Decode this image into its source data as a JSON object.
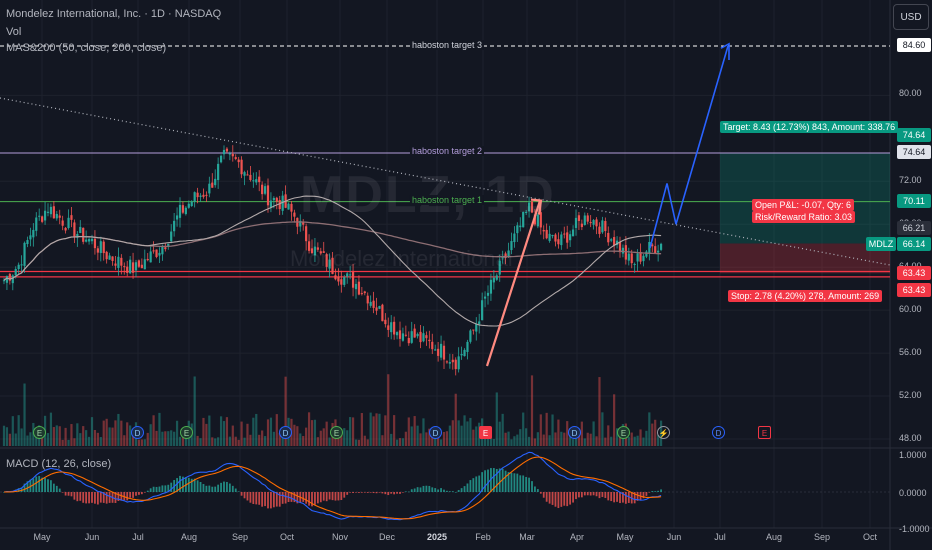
{
  "header": {
    "title": "Mondelez International, Inc. · 1D · NASDAQ",
    "volume_label": "Vol",
    "ma_label": "MAS&200 (50, close, 200, close)",
    "macd_label": "MACD (12, 26, close)",
    "currency_button": "USD"
  },
  "watermark": {
    "symbol": "MDLZ, 1D",
    "name": "Mondelez International"
  },
  "price_axis": {
    "labels": [
      "80.00",
      "72.00",
      "68.00",
      "64.00",
      "60.00",
      "56.00",
      "52.00",
      "48.00"
    ]
  },
  "price_tags": {
    "target3": "84.60",
    "target_box_top_1": "74.64",
    "target_box_top_2": "74.64",
    "target1": "70.11",
    "entry": "66.21",
    "last": "66.14",
    "last_symbol": "MDLZ",
    "stop1": "63.43",
    "stop2": "63.43"
  },
  "macd_axis": {
    "top": "1.0000",
    "mid": "0.0000",
    "bottom": "-1.0000"
  },
  "time_axis": [
    "May",
    "Jun",
    "Jul",
    "Aug",
    "Sep",
    "Oct",
    "Nov",
    "Dec",
    "2025",
    "Feb",
    "Mar",
    "Apr",
    "May",
    "Jun",
    "Jul",
    "Aug",
    "Sep",
    "Oct"
  ],
  "annotations": {
    "target3": "haboston target 3",
    "target2": "haboston target 2",
    "target1": "haboston target 1"
  },
  "position": {
    "target_text": "Target: 8.43 (12.73%) 843, Amount: 338.76",
    "open_pl": "Open P&L: -0.07, Qty: 6",
    "risk_reward": "Risk/Reward Ratio: 3.03",
    "stop_text": "Stop: 2.78 (4.20%) 278, Amount: 269"
  },
  "events": [
    "E",
    "D",
    "E",
    "D",
    "E",
    "D",
    "E",
    "D",
    "E",
    "⚡",
    "D",
    "E"
  ],
  "colors": {
    "background": "#131722",
    "up": "#26a69a",
    "down": "#ef5350",
    "target_green": "#089981",
    "stop_red": "#f23645",
    "forecast_blue": "#2962ff"
  },
  "chart_data": {
    "type": "candlestick",
    "price_range": [
      48,
      86
    ],
    "close_path": [
      62.8,
      64.2,
      67.8,
      69.6,
      68.4,
      67.2,
      66.4,
      65.2,
      64.4,
      63.8,
      65.0,
      66.2,
      69.0,
      70.4,
      71.2,
      74.2,
      73.8,
      72.4,
      70.6,
      70.0,
      68.6,
      66.0,
      64.6,
      63.2,
      62.6,
      61.2,
      59.4,
      58.0,
      57.6,
      57.0,
      56.2,
      55.2,
      57.6,
      61.2,
      64.0,
      66.8,
      69.6,
      67.0,
      66.2,
      67.6,
      68.8,
      67.6,
      66.2,
      64.2,
      65.6,
      66.2
    ]
  }
}
